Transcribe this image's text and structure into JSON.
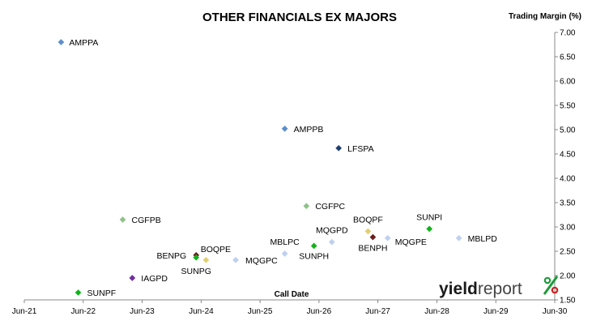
{
  "chart_data": {
    "type": "scatter",
    "title": "OTHER FINANCIALS EX MAJORS",
    "ylabel": "Trading Margin (%)",
    "xlabel": "Call Date",
    "ylim": [
      1.5,
      7.0
    ],
    "yticks": [
      "1.50",
      "2.00",
      "2.50",
      "3.00",
      "3.50",
      "4.00",
      "4.50",
      "5.00",
      "5.50",
      "6.00",
      "6.50",
      "7.00"
    ],
    "xticks": [
      "Jun-21",
      "Jun-22",
      "Jun-23",
      "Jun-24",
      "Jun-25",
      "Jun-26",
      "Jun-27",
      "Jun-28",
      "Jun-29",
      "Jun-30"
    ],
    "x_axis": "date",
    "xlim": [
      "2021-06-01",
      "2030-06-01"
    ],
    "grid": false,
    "points": [
      {
        "name": "AMPPA",
        "x": "2022-01-15",
        "y": 6.8,
        "color": "#5b8fc9"
      },
      {
        "name": "AMPPB",
        "x": "2025-11-01",
        "y": 5.02,
        "color": "#5b8fc9"
      },
      {
        "name": "LFSPA",
        "x": "2026-10-01",
        "y": 4.62,
        "color": "#1f3f6e"
      },
      {
        "name": "CGFPC",
        "x": "2026-03-15",
        "y": 3.43,
        "color": "#8fc18a"
      },
      {
        "name": "CGFPB",
        "x": "2023-02-01",
        "y": 3.15,
        "color": "#8fc18a"
      },
      {
        "name": "SUNPI",
        "x": "2028-04-15",
        "y": 2.96,
        "color": "#11b31b"
      },
      {
        "name": "BOQPF",
        "x": "2027-04-01",
        "y": 2.91,
        "color": "#e0cf72"
      },
      {
        "name": "MQGPD",
        "x": "2026-08-20",
        "y": 2.69,
        "color": "#bed0ef"
      },
      {
        "name": "MQGPE",
        "x": "2027-08-01",
        "y": 2.77,
        "color": "#bed0ef"
      },
      {
        "name": "MBLPD",
        "x": "2028-10-15",
        "y": 2.77,
        "color": "#bed0ef"
      },
      {
        "name": "BENPH",
        "x": "2027-05-01",
        "y": 2.79,
        "color": "#6b1f1f"
      },
      {
        "name": "MBLPC",
        "x": "2025-11-01",
        "y": 2.45,
        "color": "#bed0ef"
      },
      {
        "name": "SUNPH",
        "x": "2026-05-01",
        "y": 2.61,
        "color": "#11b31b"
      },
      {
        "name": "BOQPE",
        "x": "2024-07-01",
        "y": 2.32,
        "color": "#e0cf72"
      },
      {
        "name": "BENPG",
        "x": "2024-05-01",
        "y": 2.42,
        "color": "#6b1f1f"
      },
      {
        "name": "SUNPG",
        "x": "2024-05-01",
        "y": 2.37,
        "color": "#11b31b"
      },
      {
        "name": "MQGPC",
        "x": "2025-01-01",
        "y": 2.32,
        "color": "#bed0ef"
      },
      {
        "name": "IAGPD",
        "x": "2023-04-01",
        "y": 1.95,
        "color": "#7030a0"
      },
      {
        "name": "SUNPF",
        "x": "2022-05-01",
        "y": 1.65,
        "color": "#11b31b"
      }
    ]
  },
  "logo": {
    "name": "yieldreport",
    "text_yield": "yield",
    "text_report": "report",
    "symbol": "%",
    "color_dark": "#1a1a1a",
    "color_light": "#444444",
    "color_green": "#1e9b3a",
    "color_red": "#cc1f1f"
  }
}
